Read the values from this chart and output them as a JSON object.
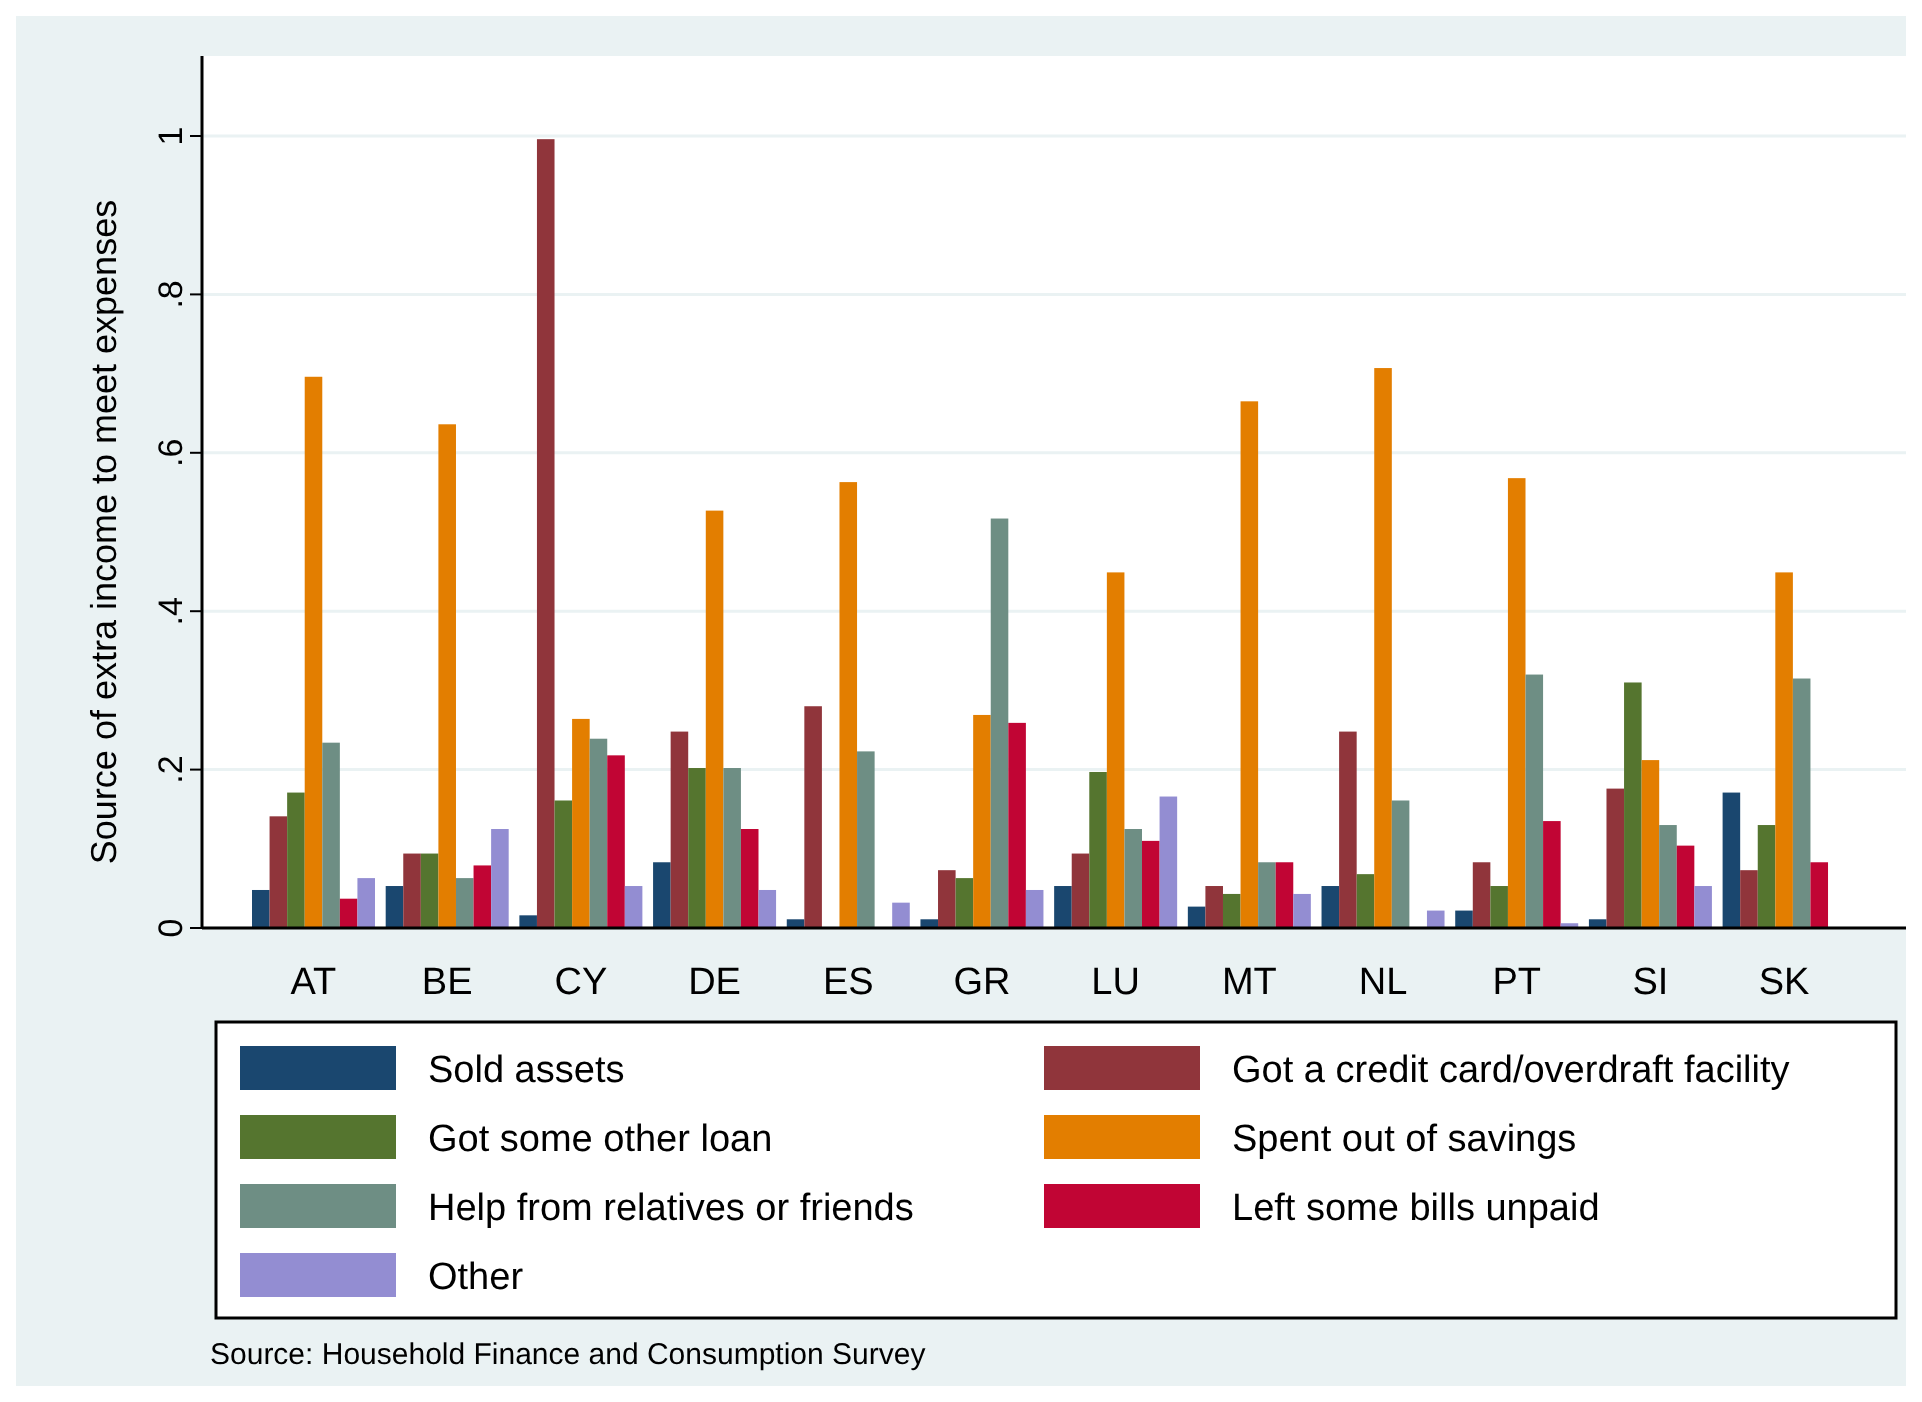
{
  "chart_data": {
    "type": "bar",
    "ylabel": "Source of extra income to meet expenses",
    "categories": [
      "AT",
      "BE",
      "CY",
      "DE",
      "ES",
      "GR",
      "LU",
      "MT",
      "NL",
      "PT",
      "SI",
      "SK"
    ],
    "series": [
      {
        "name": "Sold assets",
        "color": "#1a476f",
        "values": [
          0.048,
          0.053,
          0.016,
          0.083,
          0.011,
          0.011,
          0.053,
          0.027,
          0.053,
          0.022,
          0.011,
          0.171
        ]
      },
      {
        "name": "Got a credit card/overdraft facility",
        "color": "#90353b",
        "values": [
          0.141,
          0.094,
          0.996,
          0.248,
          0.28,
          0.073,
          0.094,
          0.053,
          0.248,
          0.083,
          0.176,
          0.073
        ]
      },
      {
        "name": "Got some other loan",
        "color": "#55752f",
        "values": [
          0.171,
          0.094,
          0.161,
          0.202,
          0,
          0.063,
          0.197,
          0.043,
          0.068,
          0.053,
          0.31,
          0.13
        ]
      },
      {
        "name": "Spent out of savings",
        "color": "#e37e00",
        "values": [
          0.696,
          0.636,
          0.264,
          0.527,
          0.563,
          0.269,
          0.449,
          0.665,
          0.707,
          0.568,
          0.212,
          0.449
        ]
      },
      {
        "name": "Help from relatives or friends",
        "color": "#6e8e84",
        "values": [
          0.234,
          0.063,
          0.239,
          0.202,
          0.223,
          0.517,
          0.125,
          0.083,
          0.161,
          0.32,
          0.13,
          0.315
        ]
      },
      {
        "name": "Left some bills unpaid",
        "color": "#c10534",
        "values": [
          0.037,
          0.079,
          0.218,
          0.125,
          0,
          0.259,
          0.11,
          0.083,
          0,
          0.135,
          0.104,
          0.083
        ]
      },
      {
        "name": "Other",
        "color": "#938dd2",
        "values": [
          0.063,
          0.125,
          0.053,
          0.048,
          0.032,
          0.048,
          0.166,
          0.043,
          0.022,
          0.006,
          0.053,
          0
        ]
      }
    ],
    "ylim": [
      0,
      1
    ],
    "yticks": [
      {
        "value": 0,
        "label": "0"
      },
      {
        "value": 0.2,
        "label": ".2"
      },
      {
        "value": 0.4,
        "label": ".4"
      },
      {
        "value": 0.6,
        "label": ".6"
      },
      {
        "value": 0.8,
        "label": ".8"
      },
      {
        "value": 1,
        "label": "1"
      }
    ],
    "grid": "y",
    "legend": "bottom",
    "annotations": [
      "Source: Household Finance and Consumption Survey"
    ]
  }
}
